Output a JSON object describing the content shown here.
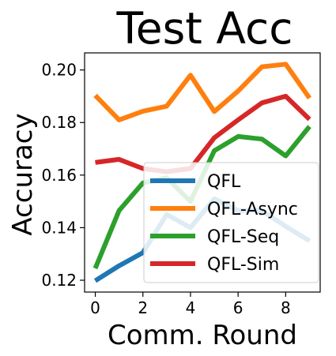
{
  "chart_data": {
    "type": "line",
    "title": "Test Acc",
    "xlabel": "Comm. Round",
    "ylabel": "Accuracy",
    "x": [
      0,
      1,
      2,
      3,
      4,
      5,
      6,
      7,
      8,
      9
    ],
    "xlim": [
      -0.45,
      9.45
    ],
    "ylim": [
      0.1155,
      0.2065
    ],
    "xticks": [
      0,
      2,
      4,
      6,
      8
    ],
    "yticks": [
      0.12,
      0.14,
      0.16,
      0.18,
      0.2
    ],
    "xtick_labels": [
      "0",
      "2",
      "4",
      "6",
      "8"
    ],
    "ytick_labels": [
      "0.12",
      "0.14",
      "0.16",
      "0.18",
      "0.20"
    ],
    "grid": false,
    "legend_position": "lower-right",
    "series": [
      {
        "name": "QFL",
        "color": "#1f77b4",
        "values": [
          0.1198,
          0.1255,
          0.1305,
          0.145,
          0.14,
          0.151,
          0.1465,
          0.1465,
          0.1405,
          0.135
        ]
      },
      {
        "name": "QFL-Async",
        "color": "#ff7f0e",
        "values": [
          0.1903,
          0.181,
          0.1843,
          0.1862,
          0.198,
          0.1842,
          0.192,
          0.2012,
          0.2022,
          0.1893
        ]
      },
      {
        "name": "QFL-Seq",
        "color": "#2ca02c",
        "values": [
          0.1245,
          0.1465,
          0.157,
          0.159,
          0.15,
          0.1693,
          0.1747,
          0.1737,
          0.1673,
          0.1785
        ]
      },
      {
        "name": "QFL-Sim",
        "color": "#d62728",
        "values": [
          0.1648,
          0.166,
          0.1625,
          0.1613,
          0.1625,
          0.1742,
          0.181,
          0.1875,
          0.19,
          0.1812
        ]
      }
    ]
  }
}
